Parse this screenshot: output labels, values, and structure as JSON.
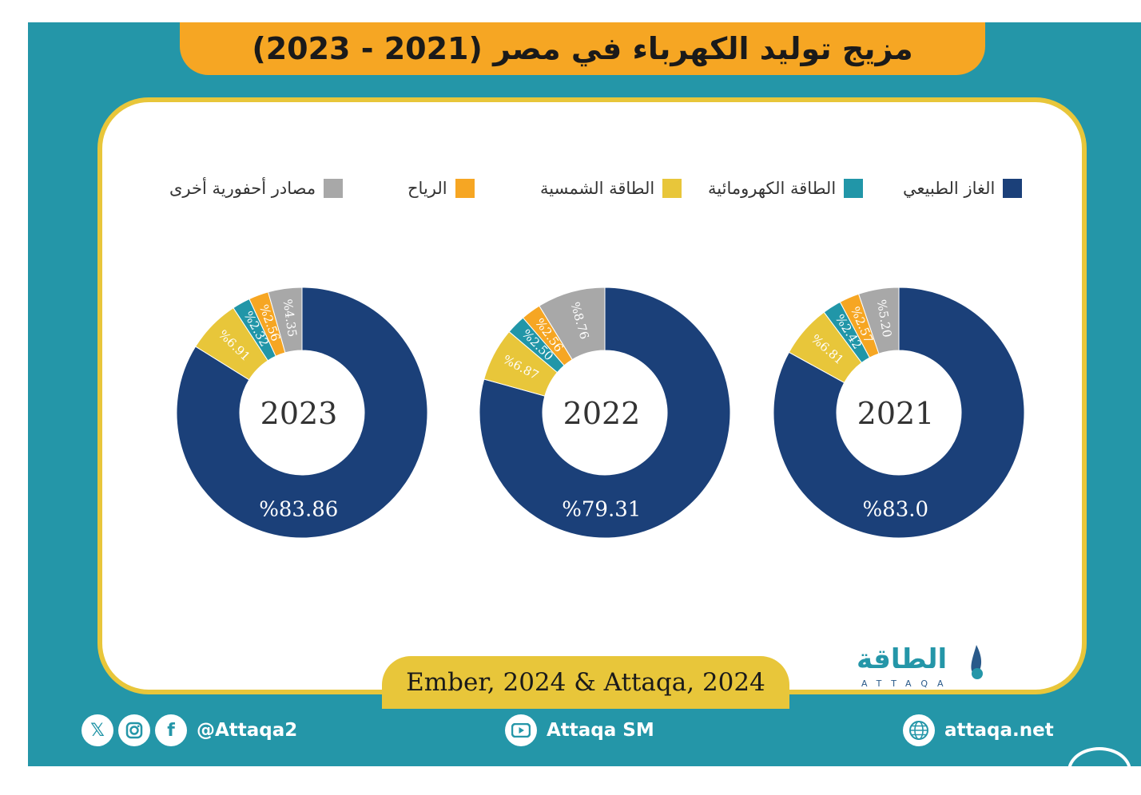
{
  "title": "مزيج توليد الكهرباء في مصر (2021 - 2023)",
  "colors": {
    "frame": "#2496a8",
    "title_bar": "#f6a623",
    "panel_border": "#e8c63a",
    "natural_gas": "#1b4079",
    "hydro": "#2196a8",
    "solar": "#e8c63a",
    "wind": "#f6a623",
    "other_fossil": "#a8a8a8"
  },
  "legend": [
    {
      "label": "الغاز الطبيعي",
      "color": "#1b4079"
    },
    {
      "label": "الطاقة الكهرومائية",
      "color": "#2196a8"
    },
    {
      "label": "الطاقة الشمسية",
      "color": "#e8c63a"
    },
    {
      "label": "الرياح",
      "color": "#f6a623"
    },
    {
      "label": "مصادر أحفورية أخرى",
      "color": "#a8a8a8"
    }
  ],
  "chart_data": [
    {
      "type": "pie",
      "title": "2021",
      "categories": [
        "الغاز الطبيعي",
        "الطاقة الكهرومائية",
        "الطاقة الشمسية",
        "الرياح",
        "مصادر أحفورية أخرى"
      ],
      "values": [
        83.0,
        2.42,
        6.81,
        2.57,
        5.2
      ],
      "labels": [
        "%83.0",
        "%2.42",
        "%6.81",
        "%2.57",
        "%5.20"
      ]
    },
    {
      "type": "pie",
      "title": "2022",
      "categories": [
        "الغاز الطبيعي",
        "الطاقة الكهرومائية",
        "الطاقة الشمسية",
        "الرياح",
        "مصادر أحفورية أخرى"
      ],
      "values": [
        79.31,
        2.5,
        6.87,
        2.56,
        8.76
      ],
      "labels": [
        "%79.31",
        "%2.50",
        "%6.87",
        "%2.56",
        "%8.76"
      ]
    },
    {
      "type": "pie",
      "title": "2023",
      "categories": [
        "الغاز الطبيعي",
        "الطاقة الكهرومائية",
        "الطاقة الشمسية",
        "الرياح",
        "مصادر أحفورية أخرى"
      ],
      "values": [
        83.86,
        2.32,
        6.91,
        2.56,
        4.35
      ],
      "labels": [
        "%83.86",
        "%2.32",
        "%6.91",
        "%2.56",
        "%4.35"
      ]
    }
  ],
  "source": "Ember, 2024 & Attaqa, 2024",
  "logo": {
    "text": "الطاقة",
    "sub": "ATTAQA"
  },
  "footer": {
    "social_handle": "@Attaqa2",
    "youtube": "Attaqa SM",
    "website": "attaqa.net"
  },
  "icons": [
    "x-icon",
    "instagram-icon",
    "facebook-icon",
    "youtube-icon",
    "globe-icon"
  ]
}
